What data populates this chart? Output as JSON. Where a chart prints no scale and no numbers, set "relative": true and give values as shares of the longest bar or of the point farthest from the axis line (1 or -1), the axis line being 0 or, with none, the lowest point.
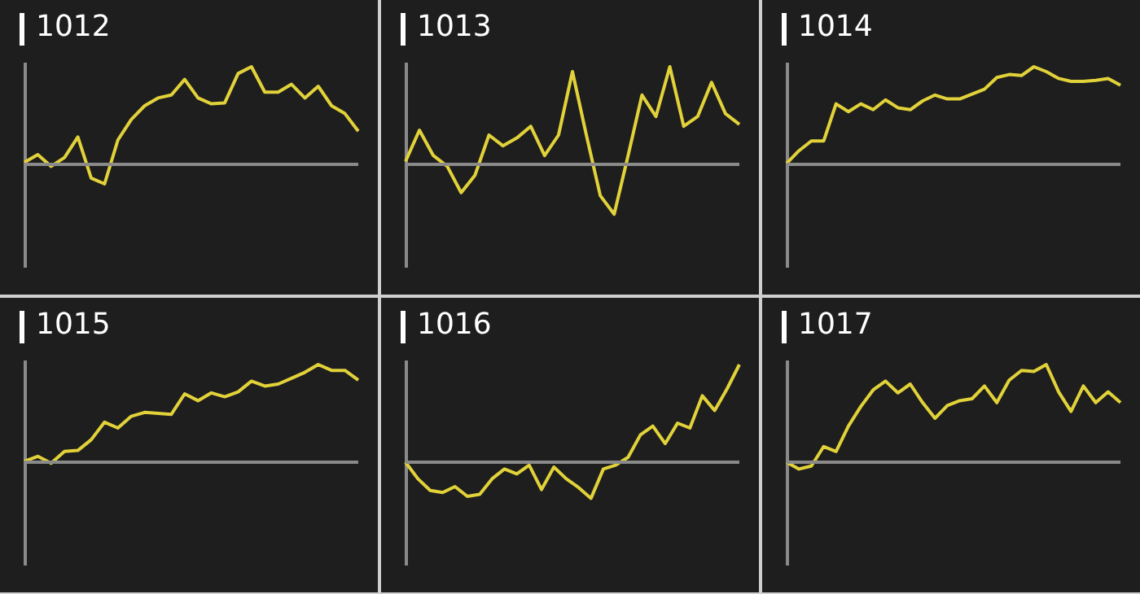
{
  "chart_data": [
    {
      "type": "line",
      "title": "1012",
      "relative": true,
      "tick_labels": false,
      "color": "#e2d23a",
      "categories": [
        null,
        null,
        null,
        null,
        null,
        null,
        null,
        null,
        null,
        null,
        null,
        null,
        null,
        null,
        null,
        null,
        null,
        null,
        null,
        null,
        null,
        null,
        null,
        null,
        null,
        null
      ],
      "values": [
        0.02,
        0.1,
        -0.02,
        0.07,
        0.28,
        -0.14,
        -0.2,
        0.25,
        0.46,
        0.6,
        0.68,
        0.71,
        0.87,
        0.68,
        0.62,
        0.63,
        0.93,
        1,
        0.74,
        0.74,
        0.82,
        0.68,
        0.8,
        0.6,
        0.52,
        0.34
      ]
    },
    {
      "type": "line",
      "title": "1013",
      "relative": true,
      "tick_labels": false,
      "color": "#e2d23a",
      "categories": [
        null,
        null,
        null,
        null,
        null,
        null,
        null,
        null,
        null,
        null,
        null,
        null,
        null,
        null,
        null,
        null,
        null,
        null,
        null,
        null,
        null,
        null,
        null,
        null,
        null
      ],
      "values": [
        0.03,
        0.35,
        0.09,
        -0.02,
        -0.29,
        -0.11,
        0.3,
        0.19,
        0.27,
        0.39,
        0.09,
        0.3,
        0.95,
        0.3,
        -0.32,
        -0.51,
        0.09,
        0.71,
        0.49,
        1,
        0.39,
        0.49,
        0.84,
        0.52,
        0.41
      ]
    },
    {
      "type": "line",
      "title": "1014",
      "relative": true,
      "tick_labels": false,
      "color": "#e2d23a",
      "categories": [
        null,
        null,
        null,
        null,
        null,
        null,
        null,
        null,
        null,
        null,
        null,
        null,
        null,
        null,
        null,
        null,
        null,
        null,
        null,
        null,
        null,
        null,
        null,
        null,
        null,
        null,
        null,
        null
      ],
      "values": [
        0.01,
        0.14,
        0.24,
        0.24,
        0.62,
        0.54,
        0.62,
        0.56,
        0.66,
        0.58,
        0.56,
        0.65,
        0.71,
        0.67,
        0.67,
        0.72,
        0.77,
        0.89,
        0.92,
        0.91,
        1,
        0.95,
        0.88,
        0.85,
        0.85,
        0.86,
        0.88,
        0.81
      ]
    },
    {
      "type": "line",
      "title": "1015",
      "relative": true,
      "tick_labels": false,
      "color": "#e2d23a",
      "categories": [
        null,
        null,
        null,
        null,
        null,
        null,
        null,
        null,
        null,
        null,
        null,
        null,
        null,
        null,
        null,
        null,
        null,
        null,
        null,
        null,
        null,
        null,
        null,
        null,
        null,
        null
      ],
      "values": [
        0.01,
        0.06,
        -0.01,
        0.11,
        0.12,
        0.23,
        0.41,
        0.35,
        0.47,
        0.51,
        0.5,
        0.49,
        0.7,
        0.63,
        0.71,
        0.67,
        0.72,
        0.83,
        0.78,
        0.8,
        0.86,
        0.92,
        1,
        0.94,
        0.94,
        0.84
      ]
    },
    {
      "type": "line",
      "title": "1016",
      "relative": true,
      "tick_labels": false,
      "color": "#e2d23a",
      "categories": [
        null,
        null,
        null,
        null,
        null,
        null,
        null,
        null,
        null,
        null,
        null,
        null,
        null,
        null,
        null,
        null,
        null,
        null,
        null,
        null,
        null,
        null,
        null,
        null,
        null,
        null,
        null,
        null
      ],
      "values": [
        0,
        -0.17,
        -0.29,
        -0.31,
        -0.25,
        -0.35,
        -0.33,
        -0.17,
        -0.07,
        -0.12,
        -0.03,
        -0.28,
        -0.05,
        -0.17,
        -0.26,
        -0.37,
        -0.07,
        -0.03,
        0.05,
        0.28,
        0.37,
        0.19,
        0.4,
        0.35,
        0.68,
        0.53,
        0.75,
        1
      ]
    },
    {
      "type": "line",
      "title": "1017",
      "relative": true,
      "tick_labels": false,
      "color": "#e2d23a",
      "categories": [
        null,
        null,
        null,
        null,
        null,
        null,
        null,
        null,
        null,
        null,
        null,
        null,
        null,
        null,
        null,
        null,
        null,
        null,
        null,
        null,
        null,
        null,
        null,
        null,
        null,
        null,
        null,
        null
      ],
      "values": [
        0,
        -0.07,
        -0.04,
        0.16,
        0.11,
        0.37,
        0.57,
        0.74,
        0.83,
        0.71,
        0.8,
        0.61,
        0.45,
        0.58,
        0.63,
        0.65,
        0.78,
        0.61,
        0.84,
        0.94,
        0.93,
        1,
        0.72,
        0.52,
        0.78,
        0.61,
        0.72,
        0.61
      ]
    }
  ]
}
